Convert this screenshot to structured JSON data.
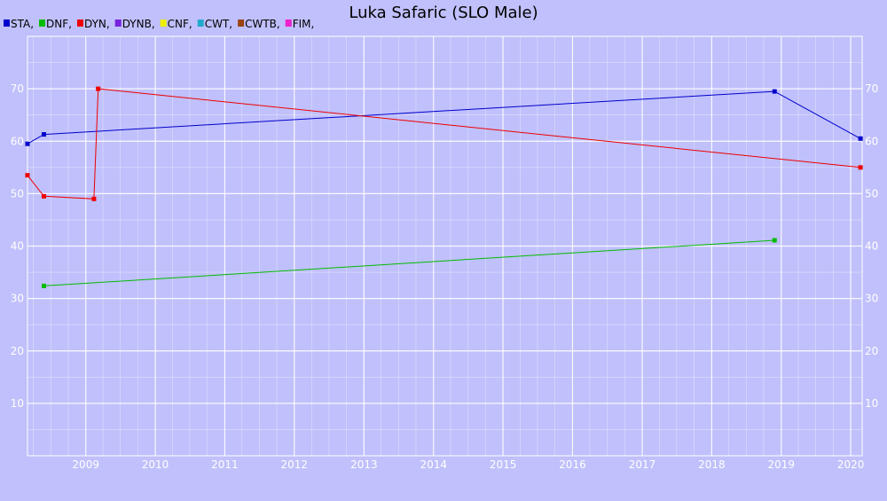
{
  "chart_data": {
    "type": "line",
    "title": "Luka Safaric (SLO Male)",
    "xlabel": "",
    "ylabel": "",
    "legend": [
      {
        "label": "STA,",
        "color": "#0000cc"
      },
      {
        "label": "DNF,",
        "color": "#00bb00"
      },
      {
        "label": "DYN,",
        "color": "#ee0000"
      },
      {
        "label": "DYNB,",
        "color": "#7722dd"
      },
      {
        "label": "CNF,",
        "color": "#eeee00"
      },
      {
        "label": "CWT,",
        "color": "#22aacc"
      },
      {
        "label": "CWTB,",
        "color": "#994411"
      },
      {
        "label": "FIM,",
        "color": "#ee22cc"
      }
    ],
    "x_ticks": [
      "2009",
      "2010",
      "2011",
      "2012",
      "2013",
      "2014",
      "2015",
      "2016",
      "2017",
      "2018",
      "2019",
      "2020"
    ],
    "y_ticks": [
      10,
      20,
      30,
      40,
      50,
      60,
      70
    ],
    "xlim": [
      "2008-03-01",
      "2020-03-01"
    ],
    "ylim": [
      0,
      80
    ],
    "grid": true,
    "legend_position": "top-left",
    "series": [
      {
        "name": "STA",
        "color": "#0000cc",
        "points": [
          {
            "x": "2008-03-01",
            "y": 59.5
          },
          {
            "x": "2008-05-26",
            "y": 61.3
          },
          {
            "x": "2018-11-27",
            "y": 69.5
          },
          {
            "x": "2020-02-21",
            "y": 60.5
          }
        ]
      },
      {
        "name": "DNF",
        "color": "#00bb00",
        "points": [
          {
            "x": "2008-05-26",
            "y": 32.4
          },
          {
            "x": "2018-11-27",
            "y": 41.1
          }
        ]
      },
      {
        "name": "DYN",
        "color": "#ee0000",
        "points": [
          {
            "x": "2008-03-01",
            "y": 53.5
          },
          {
            "x": "2008-05-26",
            "y": 49.5
          },
          {
            "x": "2009-02-13",
            "y": 49.0
          },
          {
            "x": "2009-03-07",
            "y": 70.0
          },
          {
            "x": "2020-02-21",
            "y": 55.0
          }
        ]
      }
    ]
  }
}
